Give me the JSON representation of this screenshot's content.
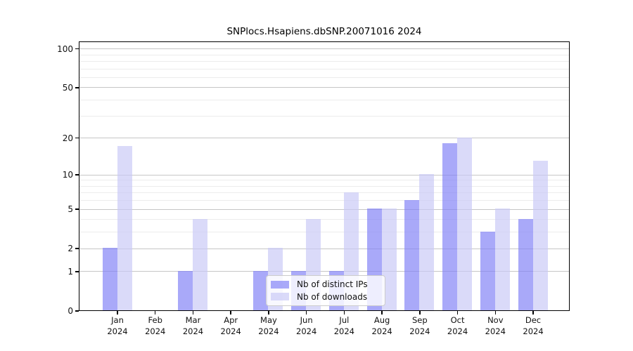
{
  "title": "SNPlocs.Hsapiens.dbSNP.20071016 2024",
  "year_label": "2024",
  "colors": {
    "distinct_ips_bar": "#8080f6",
    "downloads_bar": "#c8c8f6",
    "major_gridline": "#c6c6c6",
    "minor_gridline": "#ececec",
    "axis": "#000000",
    "legend_border": "#cccccc"
  },
  "legend": {
    "items": [
      {
        "label": "Nb of distinct IPs",
        "color": "#8080f6"
      },
      {
        "label": "Nb of downloads",
        "color": "#c8c8f6"
      }
    ]
  },
  "y_axis": {
    "major_ticks": [
      0,
      1,
      2,
      5,
      10,
      20,
      50,
      100
    ],
    "minor_ticks": [
      3,
      4,
      6,
      7,
      8,
      9,
      30,
      40,
      60,
      70,
      80,
      90
    ],
    "scale": "log1p"
  },
  "x_axis": {
    "months": [
      "Jan",
      "Feb",
      "Mar",
      "Apr",
      "May",
      "Jun",
      "Jul",
      "Aug",
      "Sep",
      "Oct",
      "Nov",
      "Dec"
    ],
    "year": "2024"
  },
  "chart_data": {
    "type": "bar",
    "title": "SNPlocs.Hsapiens.dbSNP.20071016 2024",
    "categories": [
      "Jan 2024",
      "Feb 2024",
      "Mar 2024",
      "Apr 2024",
      "May 2024",
      "Jun 2024",
      "Jul 2024",
      "Aug 2024",
      "Sep 2024",
      "Oct 2024",
      "Nov 2024",
      "Dec 2024"
    ],
    "series": [
      {
        "name": "Nb of distinct IPs",
        "color": "#8080f6",
        "values": [
          2,
          0,
          1,
          0,
          1,
          1,
          1,
          5,
          6,
          18,
          3,
          4
        ]
      },
      {
        "name": "Nb of downloads",
        "color": "#c8c8f6",
        "values": [
          17,
          0,
          4,
          0,
          2,
          4,
          7,
          5,
          10,
          20,
          5,
          13
        ]
      }
    ],
    "xlabel": "",
    "ylabel": "",
    "yscale": "log1p",
    "ylim": [
      0,
      113
    ],
    "y_major_ticks": [
      0,
      1,
      2,
      5,
      10,
      20,
      50,
      100
    ],
    "y_minor_ticks": [
      3,
      4,
      6,
      7,
      8,
      9,
      30,
      40,
      60,
      70,
      80,
      90
    ],
    "grid": true,
    "legend_position": "lower center inside"
  }
}
